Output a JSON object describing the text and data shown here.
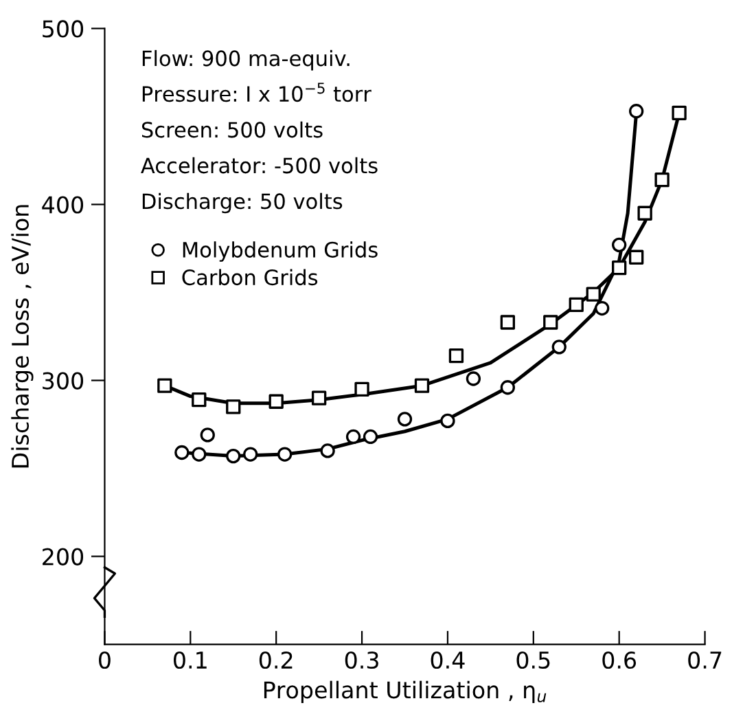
{
  "chart_data": {
    "type": "scatter",
    "xlabel": "Propellant Utilization , η$_{u}$",
    "ylabel": "Discharge Loss , eV/ion",
    "annotations": [
      "Flow: 900 ma-equiv.",
      "Pressure: I x 10$^{−5}$ torr",
      "Screen: 500 volts",
      "Accelerator: -500 volts",
      "Discharge: 50 volts"
    ],
    "xlim": [
      0,
      0.7
    ],
    "xticks": [
      0,
      0.1,
      0.2,
      0.3,
      0.4,
      0.5,
      0.6,
      0.7
    ],
    "ylim": [
      150,
      500
    ],
    "yticks": [
      200,
      300,
      400,
      500
    ],
    "grid": false,
    "legend": "top left",
    "series": [
      {
        "name": "Molybdenum Grids",
        "marker": "circle",
        "color": "#000000",
        "x": [
          0.09,
          0.11,
          0.12,
          0.15,
          0.17,
          0.21,
          0.26,
          0.29,
          0.31,
          0.35,
          0.4,
          0.43,
          0.47,
          0.53,
          0.58,
          0.6,
          0.62
        ],
        "values": [
          259,
          258,
          269,
          257,
          258,
          258,
          260,
          268,
          268,
          278,
          277,
          301,
          296,
          319,
          341,
          377,
          453
        ]
      },
      {
        "name": "Carbon Grids",
        "marker": "square",
        "color": "#000000",
        "x": [
          0.07,
          0.11,
          0.15,
          0.2,
          0.25,
          0.3,
          0.37,
          0.41,
          0.47,
          0.52,
          0.55,
          0.57,
          0.6,
          0.62,
          0.63,
          0.65,
          0.67
        ],
        "values": [
          297,
          289,
          285,
          288,
          290,
          295,
          297,
          314,
          333,
          333,
          343,
          349,
          364,
          370,
          395,
          414,
          452
        ]
      },
      {
        "type": "line",
        "marker": "none",
        "color": "#000000",
        "x": [
          0.09,
          0.15,
          0.21,
          0.26,
          0.3,
          0.35,
          0.4,
          0.47,
          0.53,
          0.57,
          0.6,
          0.61,
          0.62
        ],
        "values": [
          259,
          257,
          258,
          261,
          266,
          271,
          278,
          296,
          319,
          338,
          368,
          395,
          452
        ]
      },
      {
        "type": "line",
        "marker": "none",
        "color": "#000000",
        "x": [
          0.07,
          0.1,
          0.15,
          0.2,
          0.25,
          0.3,
          0.37,
          0.45,
          0.52,
          0.57,
          0.6,
          0.63,
          0.65,
          0.67
        ],
        "values": [
          297,
          291,
          287,
          287,
          289,
          292,
          297,
          310,
          332,
          350,
          364,
          390,
          414,
          452
        ]
      }
    ]
  }
}
